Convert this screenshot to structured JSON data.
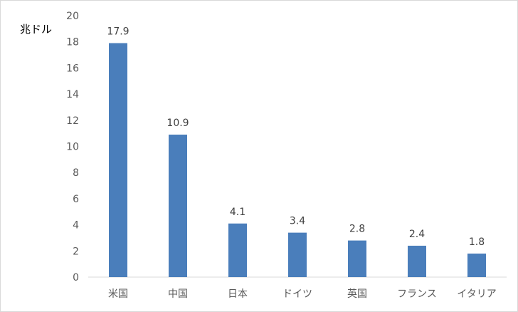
{
  "chart_data": {
    "type": "bar",
    "title": "",
    "ylabel": "兆ドル",
    "xlabel": "",
    "categories": [
      "米国",
      "中国",
      "日本",
      "ドイツ",
      "英国",
      "フランス",
      "イタリア"
    ],
    "values": [
      17.9,
      10.9,
      4.1,
      3.4,
      2.8,
      2.4,
      1.8
    ],
    "data_labels": [
      "17.9",
      "10.9",
      "4.1",
      "3.4",
      "2.8",
      "2.4",
      "1.8"
    ],
    "ylim": [
      0,
      20
    ],
    "yticks": [
      0,
      2,
      4,
      6,
      8,
      10,
      12,
      14,
      16,
      18,
      20
    ],
    "grid": "none",
    "legend": "none",
    "bar_color": "#4a7ebb",
    "axis_color": "#d9d9d9",
    "text_color": "#595959"
  }
}
